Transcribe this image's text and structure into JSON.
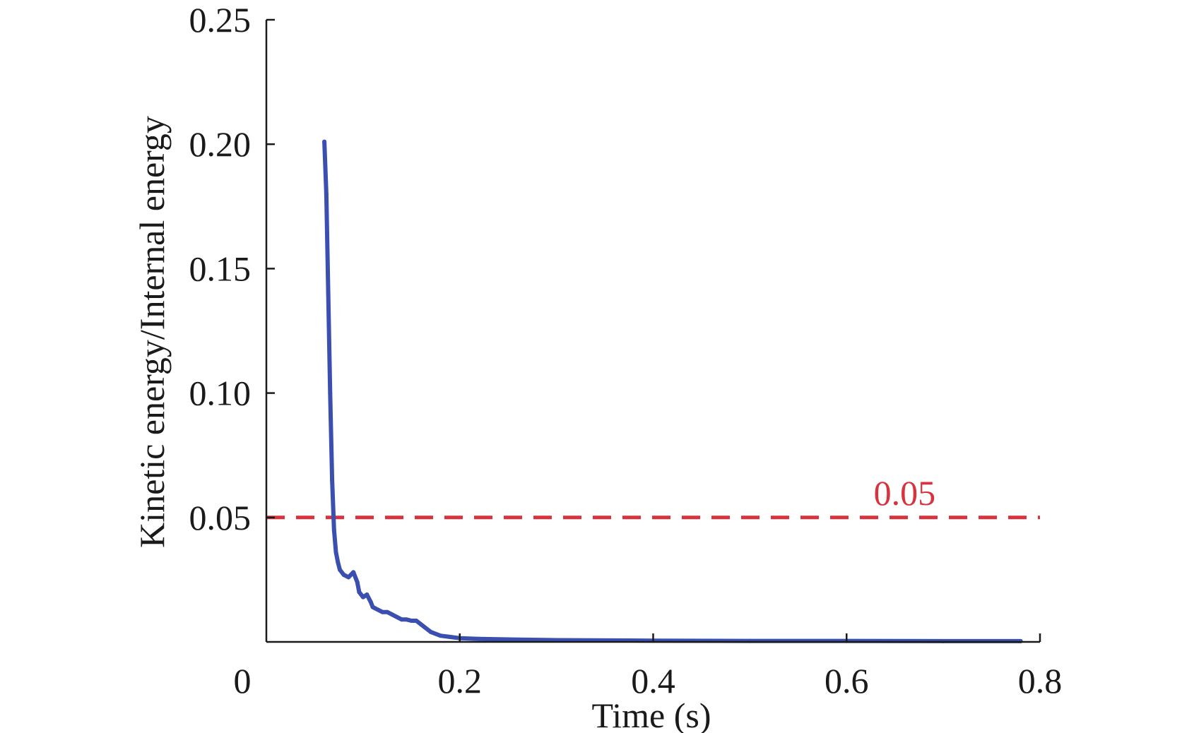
{
  "chart_data": {
    "type": "line",
    "title": "",
    "xlabel": "Time (s)",
    "ylabel": "Kinetic energy/Internal energy",
    "xlim": [
      0,
      0.8
    ],
    "ylim": [
      0,
      0.25
    ],
    "x_ticks": [
      0,
      0.2,
      0.4,
      0.6,
      0.8
    ],
    "x_tick_labels": [
      "0",
      "0.2",
      "0.4",
      "0.6",
      "0.8"
    ],
    "y_ticks": [
      0.05,
      0.1,
      0.15,
      0.2,
      0.25
    ],
    "y_tick_labels": [
      "0.05",
      "0.10",
      "0.15",
      "0.20",
      "0.25"
    ],
    "grid": false,
    "series": [
      {
        "color": "#3a4fb0",
        "x": [
          0.06,
          0.062,
          0.064,
          0.066,
          0.068,
          0.07,
          0.072,
          0.074,
          0.076,
          0.08,
          0.085,
          0.09,
          0.094,
          0.096,
          0.1,
          0.104,
          0.108,
          0.11,
          0.115,
          0.12,
          0.125,
          0.13,
          0.135,
          0.14,
          0.145,
          0.15,
          0.155,
          0.16,
          0.17,
          0.18,
          0.2,
          0.22,
          0.26,
          0.3,
          0.4,
          0.5,
          0.6,
          0.7,
          0.78
        ],
        "y": [
          0.201,
          0.18,
          0.14,
          0.1,
          0.065,
          0.045,
          0.036,
          0.032,
          0.029,
          0.027,
          0.026,
          0.028,
          0.024,
          0.02,
          0.018,
          0.019,
          0.016,
          0.014,
          0.013,
          0.012,
          0.012,
          0.011,
          0.01,
          0.009,
          0.009,
          0.0085,
          0.0085,
          0.007,
          0.004,
          0.0025,
          0.0015,
          0.0012,
          0.0009,
          0.0007,
          0.0005,
          0.0004,
          0.0004,
          0.0003,
          0.0003
        ]
      }
    ],
    "reference_lines": [
      {
        "y": 0.05,
        "style": "dashed",
        "color": "#d8323c",
        "label": "0.05"
      }
    ]
  }
}
